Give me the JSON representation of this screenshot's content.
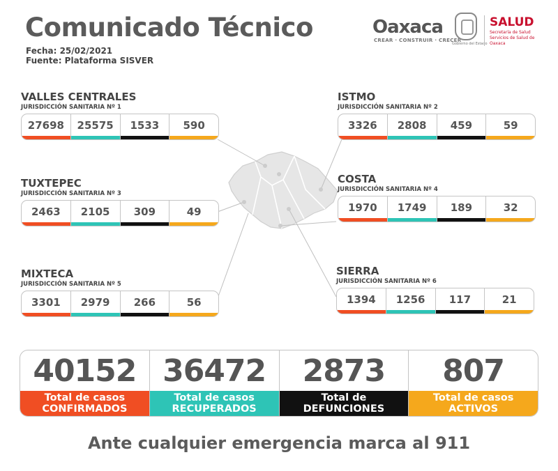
{
  "header": {
    "title": "Comunicado Técnico",
    "date": "Fecha: 25/02/2021",
    "source": "Fuente: Plataforma SISVER"
  },
  "logos": {
    "oaxaca": "Oaxaca",
    "oaxaca_tagline": "CREAR · CONSTRUIR · CRECER",
    "seal_caption": "Gobierno del Estado",
    "salud": "SALUD",
    "salud_sub": "Secretaría de Salud Servicios de Salud de Oaxaca"
  },
  "colors": {
    "confirmados": "#f04e23",
    "recuperados": "#2ec4b6",
    "defunciones": "#111111",
    "activos": "#f5a81c"
  },
  "regions": {
    "valles": {
      "name": "VALLES CENTRALES",
      "jur": "JURISDICCIÓN SANITARIA Nº 1",
      "values": [
        "27698",
        "25575",
        "1533",
        "590"
      ]
    },
    "istmo": {
      "name": "ISTMO",
      "jur": "JURISDICCIÓN SANITARIA Nº 2",
      "values": [
        "3326",
        "2808",
        "459",
        "59"
      ]
    },
    "tuxtepec": {
      "name": "TUXTEPEC",
      "jur": "JURISDICCIÓN SANITARIA Nº 3",
      "values": [
        "2463",
        "2105",
        "309",
        "49"
      ]
    },
    "costa": {
      "name": "COSTA",
      "jur": "JURISDICCIÓN SANITARIA Nº 4",
      "values": [
        "1970",
        "1749",
        "189",
        "32"
      ]
    },
    "mixteca": {
      "name": "MIXTECA",
      "jur": "JURISDICCIÓN SANITARIA Nº 5",
      "values": [
        "3301",
        "2979",
        "266",
        "56"
      ]
    },
    "sierra": {
      "name": "SIERRA",
      "jur": "JURISDICCIÓN SANITARIA Nº 6",
      "values": [
        "1394",
        "1256",
        "117",
        "21"
      ]
    }
  },
  "totals": [
    {
      "value": "40152",
      "label1": "Total de casos",
      "label2": "CONFIRMADOS"
    },
    {
      "value": "36472",
      "label1": "Total de casos",
      "label2": "RECUPERADOS"
    },
    {
      "value": "2873",
      "label1": "Total de",
      "label2": "DEFUNCIONES"
    },
    {
      "value": "807",
      "label1": "Total de casos",
      "label2": "ACTIVOS"
    }
  ],
  "footer": "Ante cualquier emergencia marca al 911"
}
